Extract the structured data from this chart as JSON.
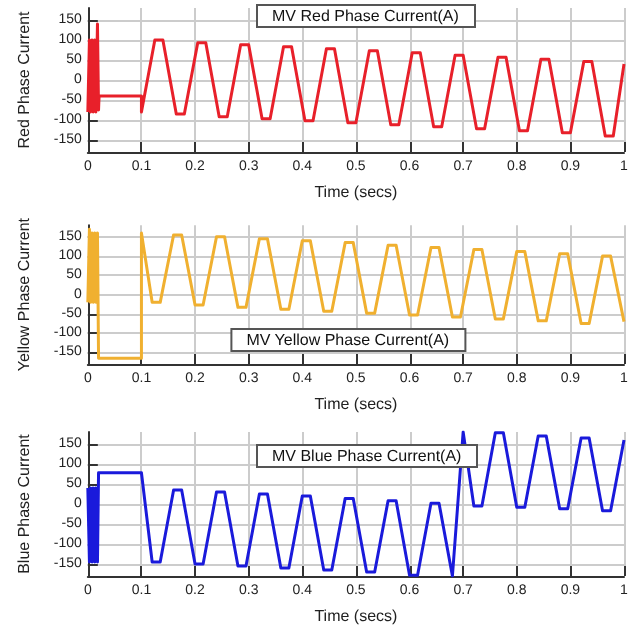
{
  "chart_data": [
    {
      "type": "line",
      "xlabel": "Time (secs)",
      "ylabel": "Red Phase Current",
      "annotations": [
        "MV Red Phase Current(A)"
      ],
      "xlim": [
        0,
        1
      ],
      "xticks": [
        0,
        0.1,
        0.2,
        0.3,
        0.4,
        0.5,
        0.6,
        0.7,
        0.8,
        0.9,
        1
      ],
      "ylim": [
        -180,
        180
      ],
      "yticks": [
        -150,
        -100,
        -50,
        0,
        50,
        100,
        150
      ],
      "grid": true,
      "series": [
        {
          "color": "#e8202a",
          "x": [
            0,
            0.003,
            0.005,
            0.008,
            0.01,
            0.013,
            0.015,
            0.018,
            0.02,
            0.021,
            0.1,
            0.1,
            0.125,
            0.14,
            0.165,
            0.18,
            0.205,
            0.22,
            0.245,
            0.26,
            0.285,
            0.3,
            0.325,
            0.34,
            0.365,
            0.38,
            0.405,
            0.42,
            0.445,
            0.46,
            0.485,
            0.5,
            0.525,
            0.54,
            0.565,
            0.58,
            0.605,
            0.62,
            0.645,
            0.66,
            0.685,
            0.7,
            0.725,
            0.74,
            0.765,
            0.78,
            0.805,
            0.82,
            0.845,
            0.86,
            0.885,
            0.9,
            0.925,
            0.94,
            0.965,
            0.98,
            1
          ],
          "values": [
            -80,
            100,
            -80,
            100,
            -80,
            100,
            -80,
            140,
            -75,
            -40,
            -40,
            -80,
            100,
            100,
            -85,
            -85,
            93,
            93,
            -92,
            -92,
            88,
            88,
            -97,
            -97,
            83,
            83,
            -102,
            -102,
            78,
            78,
            -107,
            -107,
            73,
            73,
            -112,
            -112,
            68,
            68,
            -117,
            -117,
            62,
            62,
            -122,
            -122,
            57,
            57,
            -127,
            -127,
            52,
            52,
            -132,
            -132,
            46,
            46,
            -140,
            -140,
            40
          ]
        }
      ]
    },
    {
      "type": "line",
      "xlabel": "Time (secs)",
      "ylabel": "Yellow Phase Current",
      "annotations": [
        "MV Yellow Phase Current(A)"
      ],
      "xlim": [
        0,
        1
      ],
      "xticks": [
        0,
        0.1,
        0.2,
        0.3,
        0.4,
        0.5,
        0.6,
        0.7,
        0.8,
        0.9,
        1
      ],
      "ylim": [
        -180,
        180
      ],
      "yticks": [
        -150,
        -100,
        -50,
        0,
        50,
        100,
        150
      ],
      "grid": true,
      "series": [
        {
          "color": "#f0b030",
          "x": [
            0,
            0.003,
            0.005,
            0.008,
            0.01,
            0.013,
            0.015,
            0.018,
            0.02,
            0.1,
            0.1,
            0.12,
            0.135,
            0.16,
            0.175,
            0.2,
            0.215,
            0.24,
            0.255,
            0.28,
            0.295,
            0.32,
            0.335,
            0.36,
            0.375,
            0.4,
            0.415,
            0.44,
            0.455,
            0.48,
            0.495,
            0.52,
            0.535,
            0.56,
            0.575,
            0.6,
            0.615,
            0.64,
            0.655,
            0.68,
            0.695,
            0.72,
            0.735,
            0.76,
            0.775,
            0.8,
            0.815,
            0.84,
            0.855,
            0.88,
            0.895,
            0.92,
            0.935,
            0.96,
            0.975,
            1
          ],
          "values": [
            -20,
            170,
            -20,
            160,
            -20,
            160,
            -20,
            160,
            -165,
            -165,
            160,
            -20,
            -20,
            155,
            155,
            -27,
            -27,
            150,
            150,
            -33,
            -33,
            145,
            145,
            -38,
            -38,
            140,
            140,
            -43,
            -43,
            135,
            135,
            -48,
            -48,
            128,
            128,
            -53,
            -53,
            122,
            122,
            -58,
            -58,
            117,
            117,
            -63,
            -63,
            112,
            112,
            -68,
            -68,
            106,
            106,
            -75,
            -75,
            100,
            100,
            -70
          ]
        }
      ]
    },
    {
      "type": "line",
      "xlabel": "Time (secs)",
      "ylabel": "Blue Phase Current",
      "annotations": [
        "MV Blue Phase Current(A)"
      ],
      "xlim": [
        0,
        1
      ],
      "xticks": [
        0,
        0.1,
        0.2,
        0.3,
        0.4,
        0.5,
        0.6,
        0.7,
        0.8,
        0.9,
        1
      ],
      "ylim": [
        -180,
        180
      ],
      "yticks": [
        -150,
        -100,
        -50,
        0,
        50,
        100,
        150
      ],
      "grid": true,
      "series": [
        {
          "color": "#1a1adb",
          "x": [
            0,
            0.003,
            0.005,
            0.008,
            0.01,
            0.013,
            0.015,
            0.018,
            0.02,
            0.1,
            0.12,
            0.135,
            0.16,
            0.175,
            0.2,
            0.215,
            0.24,
            0.255,
            0.28,
            0.295,
            0.32,
            0.335,
            0.36,
            0.375,
            0.4,
            0.415,
            0.44,
            0.455,
            0.48,
            0.495,
            0.52,
            0.535,
            0.56,
            0.575,
            0.6,
            0.615,
            0.64,
            0.655,
            0.68,
            0.7,
            0.72,
            0.735,
            0.76,
            0.775,
            0.8,
            0.815,
            0.84,
            0.855,
            0.88,
            0.895,
            0.92,
            0.935,
            0.96,
            0.975,
            1
          ],
          "values": [
            40,
            -145,
            40,
            -145,
            40,
            -145,
            40,
            -145,
            78,
            78,
            -145,
            -145,
            35,
            35,
            -150,
            -150,
            30,
            30,
            -155,
            -155,
            25,
            25,
            -160,
            -160,
            20,
            20,
            -165,
            -165,
            14,
            14,
            -170,
            -170,
            8,
            8,
            -178,
            -178,
            2,
            2,
            -180,
            180,
            -5,
            -5,
            178,
            178,
            -8,
            -8,
            170,
            170,
            -12,
            -12,
            165,
            165,
            -17,
            -17,
            160
          ]
        }
      ]
    }
  ]
}
